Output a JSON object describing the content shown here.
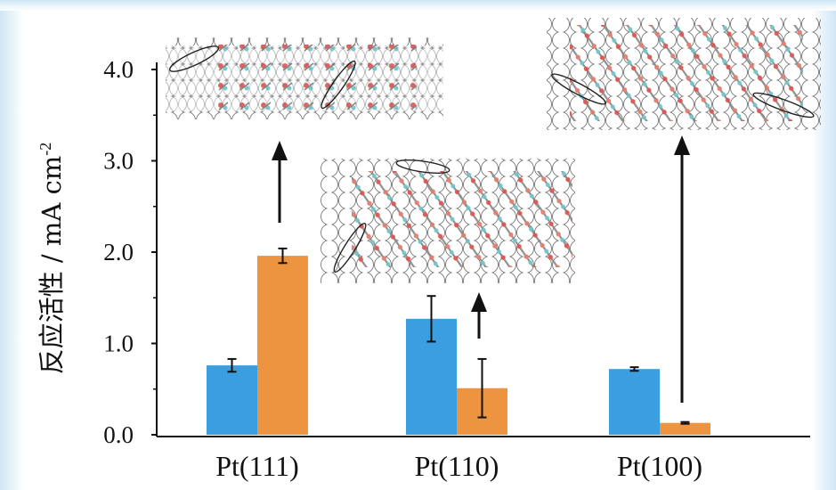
{
  "chart_data": {
    "type": "bar",
    "categories": [
      "Pt(111)",
      "Pt(110)",
      "Pt(100)"
    ],
    "ylabel": "反应活性 / mA cm",
    "ylabel_superscript": "-2",
    "ylim": [
      0,
      4.0
    ],
    "yticks": [
      "0.0",
      "1.0",
      "2.0",
      "3.0",
      "4.0"
    ],
    "grid": false,
    "legend": "none",
    "series": [
      {
        "color": "#3a9ee0",
        "values": [
          0.76,
          1.27,
          0.72
        ],
        "errors": [
          0.07,
          0.25,
          0.02
        ]
      },
      {
        "color": "#ec9440",
        "values": [
          1.96,
          0.51,
          0.13
        ],
        "errors": [
          0.08,
          0.32,
          0.01
        ]
      }
    ],
    "annotations": [
      {
        "type": "arrow",
        "category": "Pt(111)",
        "description": "arrow pointing up to molecular adsorption model image"
      },
      {
        "type": "arrow",
        "category": "Pt(110)",
        "description": "arrow pointing up to molecular adsorption model image"
      },
      {
        "type": "arrow",
        "category": "Pt(100)",
        "description": "arrow pointing up to molecular adsorption model image"
      }
    ]
  }
}
